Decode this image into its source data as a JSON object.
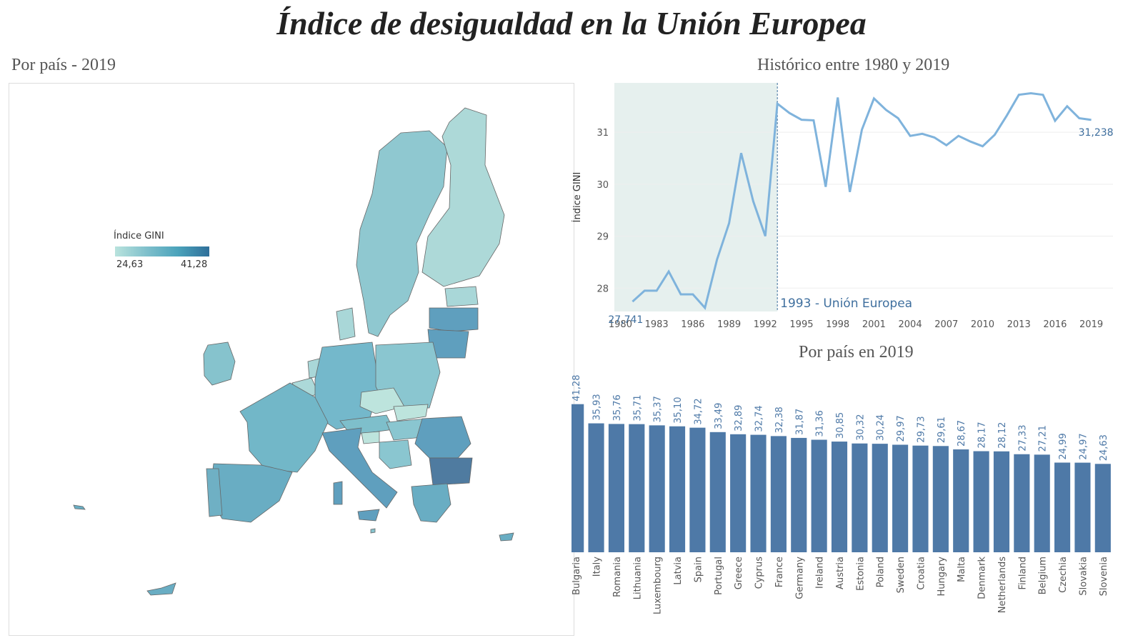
{
  "title": "Índice de desigualdad en la Unión Europea",
  "map": {
    "title": "Por país - 2019",
    "legend_title": "Índice GINI",
    "legend_min": "24,63",
    "legend_max": "41,28",
    "colors": {
      "low": "#b9e3dd",
      "mid": "#4ba3bb",
      "high": "#2f6f9a"
    }
  },
  "line": {
    "title": "Histórico entre 1980 y 2019",
    "ylabel": "Índice GINI",
    "shade_label": "1993 - Unión Europea",
    "first_label": "27,741",
    "last_label": "31,238",
    "color": "#7fb3dc"
  },
  "bar": {
    "title": "Por país en 2019",
    "color": "#4e79a7",
    "value_color": "#4e79a7"
  },
  "chart_data": [
    {
      "type": "line",
      "title": "Histórico entre 1980 y 2019",
      "ylabel": "Índice GINI",
      "x": [
        1981,
        1982,
        1983,
        1984,
        1985,
        1986,
        1987,
        1988,
        1989,
        1990,
        1991,
        1992,
        1993,
        1994,
        1995,
        1996,
        1997,
        1998,
        1999,
        2000,
        2001,
        2002,
        2003,
        2004,
        2005,
        2006,
        2007,
        2008,
        2009,
        2010,
        2011,
        2012,
        2013,
        2014,
        2015,
        2016,
        2017,
        2018,
        2019
      ],
      "values": [
        27.741,
        27.95,
        27.95,
        28.32,
        27.88,
        27.88,
        27.62,
        28.55,
        29.25,
        30.6,
        29.67,
        29.0,
        31.55,
        31.37,
        31.24,
        31.23,
        29.95,
        31.67,
        29.85,
        31.05,
        31.65,
        31.43,
        31.27,
        30.93,
        30.97,
        30.9,
        30.75,
        30.93,
        30.82,
        30.73,
        30.95,
        31.32,
        31.72,
        31.75,
        31.72,
        31.22,
        31.5,
        31.27,
        31.238
      ],
      "xticks": [
        1980,
        1983,
        1986,
        1989,
        1992,
        1995,
        1998,
        2001,
        2004,
        2007,
        2010,
        2013,
        2016,
        2019
      ],
      "yticks": [
        28,
        29,
        30,
        31
      ],
      "ylim": [
        27.55,
        31.95
      ],
      "xlim": [
        1979.5,
        2020.8
      ],
      "shade_range": [
        1979.5,
        1993
      ],
      "grid": true
    },
    {
      "type": "bar",
      "title": "Por país en 2019",
      "categories": [
        "Bulgaria",
        "Italy",
        "Romania",
        "Lithuania",
        "Luxembourg",
        "Latvia",
        "Spain",
        "Portugal",
        "Greece",
        "Cyprus",
        "France",
        "Germany",
        "Ireland",
        "Austria",
        "Estonia",
        "Poland",
        "Sweden",
        "Croatia",
        "Hungary",
        "Malta",
        "Denmark",
        "Netherlands",
        "Finland",
        "Belgium",
        "Czechia",
        "Slovakia",
        "Slovenia"
      ],
      "values": [
        41.28,
        35.93,
        35.76,
        35.71,
        35.37,
        35.1,
        34.72,
        33.49,
        32.89,
        32.74,
        32.38,
        31.87,
        31.36,
        30.85,
        30.32,
        30.24,
        29.97,
        29.73,
        29.61,
        28.67,
        28.17,
        28.12,
        27.33,
        27.21,
        24.99,
        24.97,
        24.63
      ],
      "value_labels": [
        "41,28",
        "35,93",
        "35,76",
        "35,71",
        "35,37",
        "35,10",
        "34,72",
        "33,49",
        "32,89",
        "32,74",
        "32,38",
        "31,87",
        "31,36",
        "30,85",
        "30,32",
        "30,24",
        "29,97",
        "29,73",
        "29,61",
        "28,67",
        "28,17",
        "28,12",
        "27,33",
        "27,21",
        "24,99",
        "24,97",
        "24,63"
      ],
      "ylim": [
        0,
        45
      ]
    }
  ]
}
